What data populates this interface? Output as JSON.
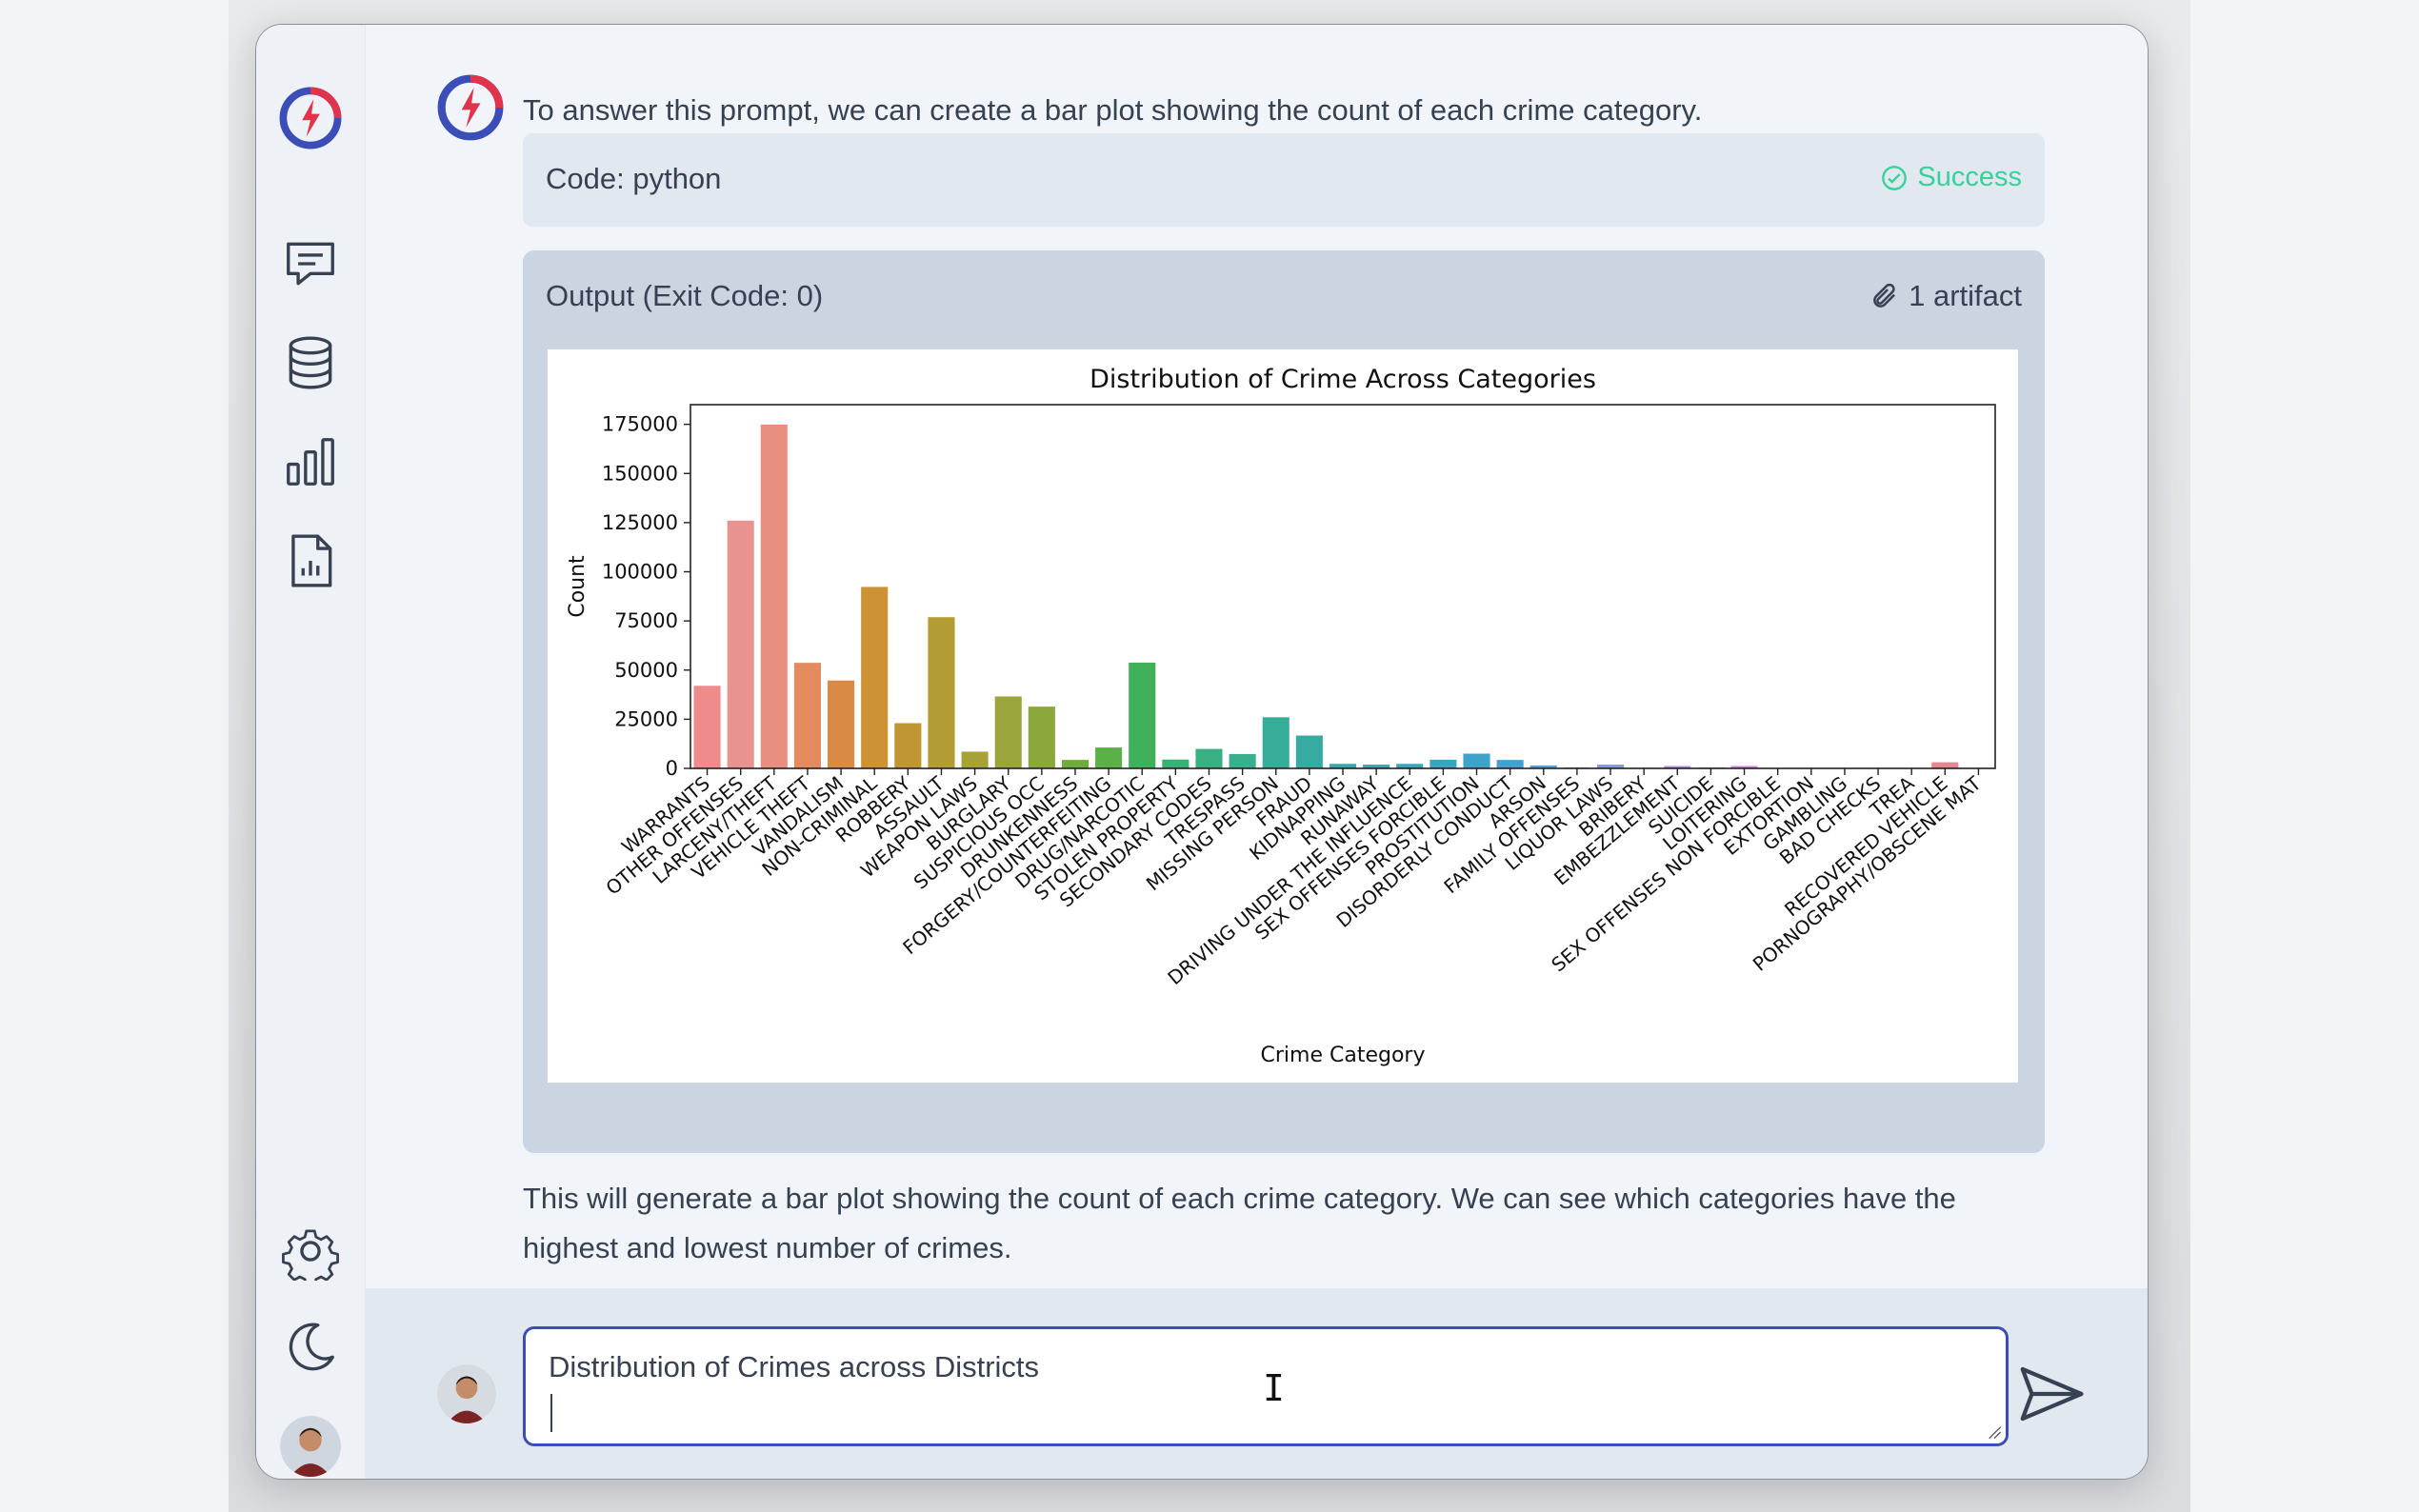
{
  "messages": {
    "intro": "To answer this prompt, we can create a bar plot showing the count of each crime category.",
    "code_label": "Code: python",
    "status": "Success",
    "output_label": "Output (Exit Code: 0)",
    "artifact_label": "1 artifact",
    "outro_line1": "This will generate a bar plot showing the count of each crime category. We can see which categories have the",
    "outro_line2": "highest and lowest number of crimes."
  },
  "composer": {
    "value": "Distribution of Crimes across Districts"
  },
  "sidebar": {
    "icons": [
      "logo-icon",
      "chat-icon",
      "database-icon",
      "bar-chart-icon",
      "report-file-icon",
      "gear-icon",
      "moon-icon",
      "avatar"
    ]
  },
  "colors": {
    "accent": "#3b4eb8",
    "success": "#34d399"
  },
  "chart_data": {
    "type": "bar",
    "title": "Distribution of Crime Across Categories",
    "xlabel": "Crime Category",
    "ylabel": "Count",
    "ylim": [
      0,
      185000
    ],
    "yticks": [
      0,
      25000,
      50000,
      75000,
      100000,
      125000,
      150000,
      175000
    ],
    "categories": [
      "WARRANTS",
      "OTHER OFFENSES",
      "LARCENY/THEFT",
      "VEHICLE THEFT",
      "VANDALISM",
      "NON-CRIMINAL",
      "ROBBERY",
      "ASSAULT",
      "WEAPON LAWS",
      "BURGLARY",
      "SUSPICIOUS OCC",
      "DRUNKENNESS",
      "FORGERY/COUNTERFEITING",
      "DRUG/NARCOTIC",
      "STOLEN PROPERTY",
      "SECONDARY CODES",
      "TRESPASS",
      "MISSING PERSON",
      "FRAUD",
      "KIDNAPPING",
      "RUNAWAY",
      "DRIVING UNDER THE INFLUENCE",
      "SEX OFFENSES FORCIBLE",
      "PROSTITUTION",
      "DISORDERLY CONDUCT",
      "ARSON",
      "FAMILY OFFENSES",
      "LIQUOR LAWS",
      "BRIBERY",
      "EMBEZZLEMENT",
      "SUICIDE",
      "LOITERING",
      "SEX OFFENSES NON FORCIBLE",
      "EXTORTION",
      "GAMBLING",
      "BAD CHECKS",
      "TREA",
      "RECOVERED VEHICLE",
      "PORNOGRAPHY/OBSCENE MAT"
    ],
    "values": [
      42000,
      126000,
      174900,
      53700,
      44700,
      92300,
      23000,
      76900,
      8500,
      36600,
      31400,
      4300,
      10600,
      53800,
      4500,
      9900,
      7300,
      26000,
      16700,
      2300,
      1900,
      2300,
      4400,
      7500,
      4300,
      1500,
      500,
      1900,
      300,
      1200,
      500,
      1200,
      150,
      260,
      150,
      250,
      10,
      3100,
      20
    ],
    "colors": [
      "#ee8b8b",
      "#e8938f",
      "#e98f80",
      "#e38a5e",
      "#db8a46",
      "#cc9234",
      "#bf9633",
      "#b49c34",
      "#a6a237",
      "#9aa63b",
      "#8aa83b",
      "#6dad3d",
      "#5bb048",
      "#41b05a",
      "#3bb074",
      "#38b082",
      "#38af8f",
      "#37ad99",
      "#37aba2",
      "#37a9aa",
      "#39a7b1",
      "#3aa6b8",
      "#3ca4c0",
      "#3fa2c8",
      "#45a0d1",
      "#569ed9",
      "#6b9be0",
      "#8596e6",
      "#9c90ea",
      "#b089ea",
      "#c282e6",
      "#d07ddf",
      "#dc78d3",
      "#e577c4",
      "#ea79b4",
      "#ec7ca5",
      "#ed8098",
      "#ec838e",
      "#ec8787"
    ]
  }
}
